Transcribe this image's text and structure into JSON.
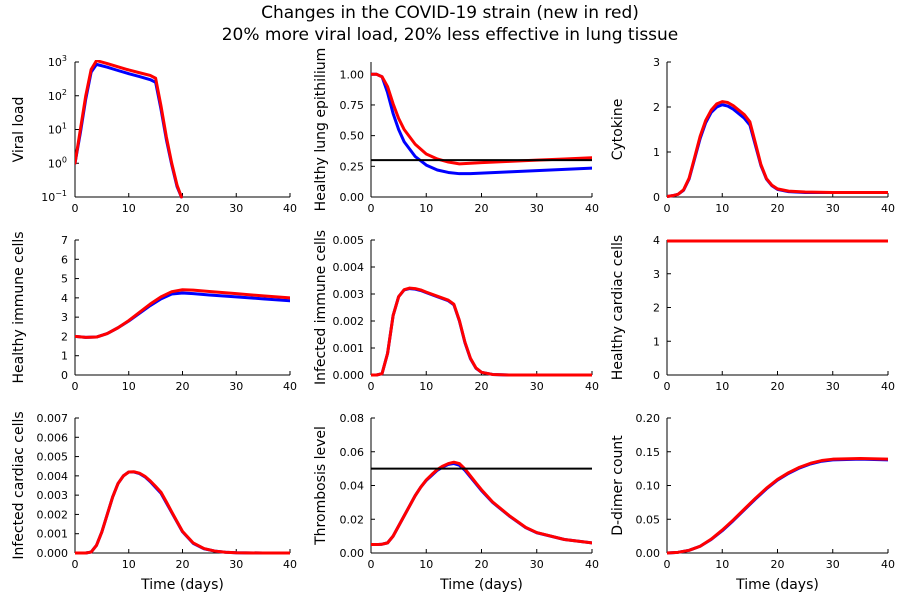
{
  "figure": {
    "title_line1": "Changes in the COVID-19 strain  (new in red)",
    "title_line2": "20% more viral load, 20% less effective in lung tissue"
  },
  "colors": {
    "original": "#0000ff",
    "new": "#ff0000",
    "threshold": "#000000"
  },
  "chart_data": [
    {
      "type": "line",
      "ylabel": "Viral load",
      "xlabel": "",
      "yscale": "log",
      "xlim": [
        0,
        40
      ],
      "ylim": [
        0.1,
        1000
      ],
      "xticks": [
        "0",
        "10",
        "20",
        "30",
        "40"
      ],
      "yticks": [
        {
          "value": 0.1,
          "base": "10",
          "exp": "−1"
        },
        {
          "value": 1,
          "base": "10",
          "exp": "0"
        },
        {
          "value": 10,
          "base": "10",
          "exp": "1"
        },
        {
          "value": 100,
          "base": "10",
          "exp": "2"
        },
        {
          "value": 1000,
          "base": "10",
          "exp": "3"
        }
      ],
      "series": [
        {
          "color": "original",
          "x": [
            0,
            1,
            2,
            3,
            4,
            6,
            8,
            10,
            12,
            14,
            15,
            16,
            17,
            18,
            19,
            19.8
          ],
          "y": [
            1,
            8,
            80,
            500,
            850,
            700,
            560,
            450,
            370,
            300,
            250,
            40,
            5,
            0.9,
            0.2,
            0.1
          ]
        },
        {
          "color": "new",
          "x": [
            0,
            1,
            2,
            3,
            4,
            6,
            8,
            10,
            12,
            14,
            15,
            16,
            17,
            18,
            19,
            19.8
          ],
          "y": [
            1,
            10,
            100,
            600,
            1100,
            900,
            720,
            580,
            480,
            400,
            330,
            50,
            6,
            1,
            0.22,
            0.1
          ]
        }
      ]
    },
    {
      "type": "line",
      "ylabel": "Healthy lung epithilium",
      "xlabel": "",
      "xlim": [
        0,
        40
      ],
      "ylim": [
        0,
        1.1
      ],
      "xticks": [
        "0",
        "10",
        "20",
        "30",
        "40"
      ],
      "yticks": [
        "0.00",
        "0.25",
        "0.50",
        "0.75",
        "1.00"
      ],
      "hline": 0.3,
      "series": [
        {
          "color": "original",
          "x": [
            0,
            1,
            2,
            3,
            4,
            5,
            6,
            8,
            10,
            12,
            14,
            16,
            18,
            20,
            25,
            30,
            35,
            40
          ],
          "y": [
            1.0,
            1.0,
            0.98,
            0.85,
            0.68,
            0.55,
            0.45,
            0.33,
            0.26,
            0.22,
            0.2,
            0.19,
            0.19,
            0.195,
            0.205,
            0.215,
            0.225,
            0.235
          ]
        },
        {
          "color": "new",
          "x": [
            0,
            1,
            2,
            3,
            4,
            5,
            6,
            8,
            10,
            12,
            14,
            16,
            18,
            20,
            25,
            30,
            35,
            40
          ],
          "y": [
            1.0,
            1.0,
            0.98,
            0.9,
            0.76,
            0.64,
            0.55,
            0.43,
            0.35,
            0.31,
            0.285,
            0.27,
            0.275,
            0.28,
            0.29,
            0.3,
            0.31,
            0.32
          ]
        }
      ]
    },
    {
      "type": "line",
      "ylabel": "Cytokine",
      "xlabel": "",
      "xlim": [
        0,
        40
      ],
      "ylim": [
        0,
        3
      ],
      "xticks": [
        "0",
        "10",
        "20",
        "30",
        "40"
      ],
      "yticks": [
        "0",
        "1",
        "2",
        "3"
      ],
      "series": [
        {
          "color": "original",
          "x": [
            0,
            1,
            2,
            3,
            4,
            5,
            6,
            7,
            8,
            9,
            10,
            11,
            12,
            13,
            14,
            15,
            16,
            17,
            18,
            19,
            20,
            22,
            25,
            30,
            35,
            40
          ],
          "y": [
            0.01,
            0.03,
            0.06,
            0.15,
            0.4,
            0.85,
            1.3,
            1.65,
            1.88,
            2.0,
            2.05,
            2.02,
            1.95,
            1.85,
            1.75,
            1.6,
            1.15,
            0.7,
            0.4,
            0.25,
            0.17,
            0.12,
            0.1,
            0.1,
            0.1,
            0.1
          ]
        },
        {
          "color": "new",
          "x": [
            0,
            1,
            2,
            3,
            4,
            5,
            6,
            7,
            8,
            9,
            10,
            11,
            12,
            13,
            14,
            15,
            16,
            17,
            18,
            19,
            20,
            22,
            25,
            30,
            35,
            40
          ],
          "y": [
            0.01,
            0.03,
            0.06,
            0.16,
            0.42,
            0.88,
            1.35,
            1.7,
            1.93,
            2.07,
            2.12,
            2.1,
            2.03,
            1.93,
            1.83,
            1.67,
            1.2,
            0.72,
            0.41,
            0.26,
            0.18,
            0.13,
            0.11,
            0.1,
            0.1,
            0.1
          ]
        }
      ]
    },
    {
      "type": "line",
      "ylabel": "Healthy immune cells",
      "xlabel": "",
      "xlim": [
        0,
        40
      ],
      "ylim": [
        0,
        7
      ],
      "xticks": [
        "0",
        "10",
        "20",
        "30",
        "40"
      ],
      "yticks": [
        "0",
        "1",
        "2",
        "3",
        "4",
        "5",
        "6",
        "7"
      ],
      "series": [
        {
          "color": "original",
          "x": [
            0,
            2,
            4,
            6,
            8,
            10,
            12,
            14,
            16,
            18,
            20,
            22,
            25,
            30,
            35,
            40
          ],
          "y": [
            2.0,
            1.95,
            1.97,
            2.15,
            2.45,
            2.8,
            3.2,
            3.6,
            3.95,
            4.2,
            4.25,
            4.22,
            4.15,
            4.05,
            3.95,
            3.85
          ]
        },
        {
          "color": "new",
          "x": [
            0,
            2,
            4,
            6,
            8,
            10,
            12,
            14,
            16,
            18,
            20,
            22,
            25,
            30,
            35,
            40
          ],
          "y": [
            2.0,
            1.95,
            1.97,
            2.15,
            2.45,
            2.82,
            3.25,
            3.68,
            4.05,
            4.32,
            4.42,
            4.4,
            4.33,
            4.22,
            4.1,
            4.0
          ]
        }
      ]
    },
    {
      "type": "line",
      "ylabel": "Infected immune cells",
      "xlabel": "",
      "xlim": [
        0,
        40
      ],
      "ylim": [
        0,
        0.005
      ],
      "xticks": [
        "0",
        "10",
        "20",
        "30",
        "40"
      ],
      "yticks": [
        "0.000",
        "0.001",
        "0.002",
        "0.003",
        "0.004",
        "0.005"
      ],
      "series": [
        {
          "color": "original",
          "x": [
            0,
            1,
            2,
            3,
            4,
            5,
            6,
            7,
            8,
            9,
            10,
            12,
            14,
            15,
            16,
            17,
            18,
            19,
            20,
            22,
            25,
            30,
            40
          ],
          "y": [
            0,
            0,
            5e-05,
            0.0008,
            0.0022,
            0.0029,
            0.00315,
            0.0032,
            0.00318,
            0.00313,
            0.00305,
            0.0029,
            0.00275,
            0.0026,
            0.002,
            0.0012,
            0.0006,
            0.00025,
            0.0001,
            2e-05,
            0,
            0,
            0
          ]
        },
        {
          "color": "new",
          "x": [
            0,
            1,
            2,
            3,
            4,
            5,
            6,
            7,
            8,
            9,
            10,
            12,
            14,
            15,
            16,
            17,
            18,
            19,
            20,
            22,
            25,
            30,
            40
          ],
          "y": [
            0,
            0,
            5e-05,
            0.0008,
            0.0022,
            0.0029,
            0.00316,
            0.00322,
            0.0032,
            0.00315,
            0.00307,
            0.00292,
            0.00277,
            0.00262,
            0.00202,
            0.00122,
            0.00062,
            0.00026,
            0.0001,
            2e-05,
            0,
            0,
            0
          ]
        }
      ]
    },
    {
      "type": "line",
      "ylabel": "Healthy cardiac cells",
      "xlabel": "",
      "xlim": [
        0,
        40
      ],
      "ylim": [
        0,
        4
      ],
      "xticks": [
        "0",
        "10",
        "20",
        "30",
        "40"
      ],
      "yticks": [
        "0",
        "1",
        "2",
        "3",
        "4"
      ],
      "series": [
        {
          "color": "original",
          "x": [
            0,
            40
          ],
          "y": [
            3.97,
            3.97
          ]
        },
        {
          "color": "new",
          "x": [
            0,
            40
          ],
          "y": [
            3.97,
            3.97
          ]
        }
      ]
    },
    {
      "type": "line",
      "ylabel": "Infected cardiac cells",
      "xlabel": "Time (days)",
      "xlim": [
        0,
        40
      ],
      "ylim": [
        0,
        0.007
      ],
      "xticks": [
        "0",
        "10",
        "20",
        "30",
        "40"
      ],
      "yticks": [
        "0.000",
        "0.001",
        "0.002",
        "0.003",
        "0.004",
        "0.005",
        "0.006",
        "0.007"
      ],
      "series": [
        {
          "color": "original",
          "x": [
            0,
            2,
            3,
            4,
            5,
            6,
            7,
            8,
            9,
            10,
            11,
            12,
            13,
            14,
            15,
            16,
            17,
            18,
            19,
            20,
            22,
            24,
            26,
            28,
            30,
            35,
            40
          ],
          "y": [
            0,
            0,
            5e-05,
            0.0004,
            0.0011,
            0.002,
            0.0029,
            0.0036,
            0.004,
            0.0042,
            0.0042,
            0.00412,
            0.00395,
            0.0037,
            0.0034,
            0.0031,
            0.0026,
            0.0021,
            0.0016,
            0.0011,
            0.0005,
            0.00022,
            0.0001,
            4e-05,
            1e-05,
            0,
            0
          ]
        },
        {
          "color": "new",
          "x": [
            0,
            2,
            3,
            4,
            5,
            6,
            7,
            8,
            9,
            10,
            11,
            12,
            13,
            14,
            15,
            16,
            17,
            18,
            19,
            20,
            22,
            24,
            26,
            28,
            30,
            35,
            40
          ],
          "y": [
            0,
            0,
            5e-05,
            0.0004,
            0.0011,
            0.002,
            0.0029,
            0.0036,
            0.004,
            0.0042,
            0.00421,
            0.00414,
            0.00398,
            0.00374,
            0.00345,
            0.00315,
            0.00265,
            0.00213,
            0.00162,
            0.00112,
            0.00052,
            0.00023,
            0.0001,
            4e-05,
            1e-05,
            0,
            0
          ]
        }
      ]
    },
    {
      "type": "line",
      "ylabel": "Thrombosis level",
      "xlabel": "Time (days)",
      "xlim": [
        0,
        40
      ],
      "ylim": [
        0,
        0.08
      ],
      "xticks": [
        "0",
        "10",
        "20",
        "30",
        "40"
      ],
      "yticks": [
        "0.00",
        "0.02",
        "0.04",
        "0.06",
        "0.08"
      ],
      "hline": 0.05,
      "series": [
        {
          "color": "original",
          "x": [
            0,
            1,
            2,
            3,
            4,
            5,
            6,
            7,
            8,
            9,
            10,
            11,
            12,
            13,
            14,
            15,
            16,
            17,
            18,
            19,
            20,
            22,
            25,
            28,
            30,
            35,
            40
          ],
          "y": [
            0.005,
            0.005,
            0.0052,
            0.006,
            0.01,
            0.016,
            0.022,
            0.028,
            0.034,
            0.039,
            0.043,
            0.046,
            0.049,
            0.051,
            0.0525,
            0.053,
            0.052,
            0.049,
            0.045,
            0.041,
            0.037,
            0.03,
            0.022,
            0.015,
            0.012,
            0.008,
            0.006
          ]
        },
        {
          "color": "new",
          "x": [
            0,
            1,
            2,
            3,
            4,
            5,
            6,
            7,
            8,
            9,
            10,
            11,
            12,
            13,
            14,
            15,
            16,
            17,
            18,
            19,
            20,
            22,
            25,
            28,
            30,
            35,
            40
          ],
          "y": [
            0.005,
            0.005,
            0.0052,
            0.006,
            0.01,
            0.016,
            0.022,
            0.028,
            0.034,
            0.039,
            0.0433,
            0.0465,
            0.0495,
            0.0515,
            0.053,
            0.0538,
            0.053,
            0.0498,
            0.0457,
            0.0415,
            0.0375,
            0.0303,
            0.0222,
            0.0152,
            0.0121,
            0.008,
            0.006
          ]
        }
      ]
    },
    {
      "type": "line",
      "ylabel": "D-dimer count",
      "xlabel": "Time (days)",
      "xlim": [
        0,
        40
      ],
      "ylim": [
        0,
        0.2
      ],
      "xticks": [
        "0",
        "10",
        "20",
        "30",
        "40"
      ],
      "yticks": [
        "0.00",
        "0.05",
        "0.10",
        "0.15",
        "0.20"
      ],
      "series": [
        {
          "color": "original",
          "x": [
            0,
            2,
            4,
            6,
            8,
            10,
            12,
            14,
            16,
            18,
            20,
            22,
            24,
            26,
            28,
            30,
            35,
            40
          ],
          "y": [
            0,
            0.001,
            0.004,
            0.01,
            0.02,
            0.033,
            0.048,
            0.064,
            0.08,
            0.095,
            0.108,
            0.118,
            0.126,
            0.132,
            0.136,
            0.138,
            0.139,
            0.138
          ]
        },
        {
          "color": "new",
          "x": [
            0,
            2,
            4,
            6,
            8,
            10,
            12,
            14,
            16,
            18,
            20,
            22,
            24,
            26,
            28,
            30,
            35,
            40
          ],
          "y": [
            0,
            0.001,
            0.004,
            0.01,
            0.0205,
            0.034,
            0.049,
            0.065,
            0.081,
            0.096,
            0.109,
            0.119,
            0.127,
            0.133,
            0.137,
            0.139,
            0.14,
            0.139
          ]
        }
      ]
    }
  ]
}
